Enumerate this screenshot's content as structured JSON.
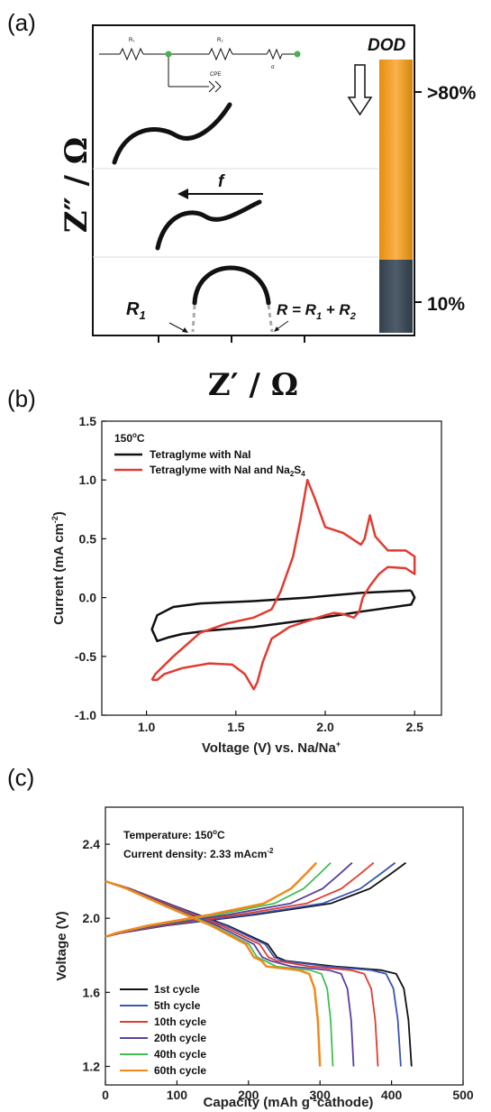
{
  "panel_a": {
    "label": "(a)",
    "y_axis_title": "Z″ / Ω",
    "x_axis_title": "Z′ / Ω",
    "dod_title": "DOD",
    "dod_high": ">80%",
    "dod_low": "10%",
    "frequency_label": "f",
    "r1_text": "R",
    "r1_sub": "1",
    "r_total_parts": [
      "R = R",
      "1",
      " + R",
      "2"
    ],
    "circuit_labels": {
      "r1": "R₁",
      "r2": "R₂",
      "cpe": "CPE",
      "sigma": "σ"
    }
  },
  "chart_data": [
    {
      "type": "line",
      "panel": "(b)",
      "title": "",
      "xlabel": "Voltage (V) vs. Na/Na",
      "xlabel_sup": "+",
      "ylabel": "Current (mA cm",
      "ylabel_sup": "-2",
      "ylabel_close": ")",
      "xlim": [
        0.75,
        2.65
      ],
      "ylim": [
        -1.0,
        1.5
      ],
      "xticks": [
        1.0,
        1.5,
        2.0,
        2.5
      ],
      "xtick_labels": [
        "1.0",
        "1.5",
        "2.0",
        "2.5"
      ],
      "yticks": [
        -1.0,
        -0.5,
        0.0,
        0.5,
        1.0,
        1.5
      ],
      "ytick_labels": [
        "-1.0",
        "-0.5",
        "0.0",
        "0.5",
        "1.0",
        "1.5"
      ],
      "annotation": {
        "text": "150",
        "sup": "o",
        "after": "C"
      },
      "legend_position": "top-left",
      "series": [
        {
          "name": "Tetraglyme with NaI",
          "color": "#111111",
          "x": [
            2.48,
            2.2,
            1.9,
            1.6,
            1.3,
            1.15,
            1.06,
            1.03,
            1.06,
            1.12,
            1.2,
            1.35,
            1.6,
            1.9,
            2.2,
            2.48,
            2.5,
            2.48
          ],
          "y": [
            0.06,
            0.04,
            0.0,
            -0.03,
            -0.05,
            -0.08,
            -0.15,
            -0.27,
            -0.37,
            -0.34,
            -0.31,
            -0.28,
            -0.25,
            -0.19,
            -0.12,
            -0.06,
            0.0,
            0.06
          ]
        },
        {
          "name": "Tetraglyme with NaI and Na",
          "name_sub": "2",
          "name_rest": "S",
          "name_sub2": "4",
          "color": "#e03c31",
          "x": [
            1.03,
            1.06,
            1.1,
            1.2,
            1.35,
            1.48,
            1.55,
            1.6,
            1.62,
            1.65,
            1.7,
            1.8,
            1.9,
            2.0,
            2.05,
            2.1,
            2.16,
            2.19,
            2.21,
            2.25,
            2.3,
            2.35,
            2.45,
            2.5,
            2.5,
            2.45,
            2.35,
            2.28,
            2.25,
            2.22,
            2.2,
            2.1,
            2.0,
            1.94,
            1.9,
            1.86,
            1.82,
            1.75,
            1.7,
            1.6,
            1.45,
            1.3,
            1.15,
            1.05,
            1.03
          ],
          "y": [
            -0.7,
            -0.7,
            -0.65,
            -0.6,
            -0.56,
            -0.57,
            -0.65,
            -0.78,
            -0.72,
            -0.55,
            -0.35,
            -0.25,
            -0.2,
            -0.15,
            -0.13,
            -0.14,
            -0.17,
            -0.12,
            0.0,
            0.1,
            0.2,
            0.26,
            0.25,
            0.2,
            0.35,
            0.4,
            0.4,
            0.52,
            0.7,
            0.5,
            0.45,
            0.55,
            0.6,
            0.85,
            1.0,
            0.65,
            0.35,
            0.05,
            -0.1,
            -0.17,
            -0.22,
            -0.3,
            -0.5,
            -0.65,
            -0.7
          ]
        }
      ]
    },
    {
      "type": "line",
      "panel": "(c)",
      "title": "",
      "xlabel": "Capacity (mAh g",
      "xlabel_sup": "-1",
      "xlabel_rest": "cathode)",
      "ylabel": "Voltage (V)",
      "xlim": [
        0,
        500
      ],
      "ylim": [
        1.1,
        2.6
      ],
      "xticks": [
        0,
        100,
        200,
        300,
        400,
        500
      ],
      "xtick_labels": [
        "0",
        "100",
        "200",
        "300",
        "400",
        "500"
      ],
      "yticks": [
        1.2,
        1.6,
        2.0,
        2.4
      ],
      "ytick_labels": [
        "1.2",
        "1.6",
        "2.0",
        "2.4"
      ],
      "annotations": [
        {
          "text": "Temperature: 150",
          "sup": "o",
          "after": "C"
        },
        {
          "text": "Current density: 2.33 mAcm",
          "sup": "-2",
          "after": ""
        }
      ],
      "legend_position": "bottom-left",
      "series": [
        {
          "name": "1st cycle",
          "color": "#111111",
          "discharge_end": 428,
          "charge_end": 420
        },
        {
          "name": "5th cycle",
          "color": "#3a55b4",
          "discharge_end": 413,
          "charge_end": 405
        },
        {
          "name": "10th cycle",
          "color": "#e03c31",
          "discharge_end": 381,
          "charge_end": 375
        },
        {
          "name": "20th cycle",
          "color": "#5a3fa0",
          "discharge_end": 347,
          "charge_end": 345
        },
        {
          "name": "40th cycle",
          "color": "#3fbf52",
          "discharge_end": 318,
          "charge_end": 315
        },
        {
          "name": "60th cycle",
          "color": "#f0891c",
          "discharge_end": 300,
          "charge_end": 295
        }
      ]
    }
  ]
}
